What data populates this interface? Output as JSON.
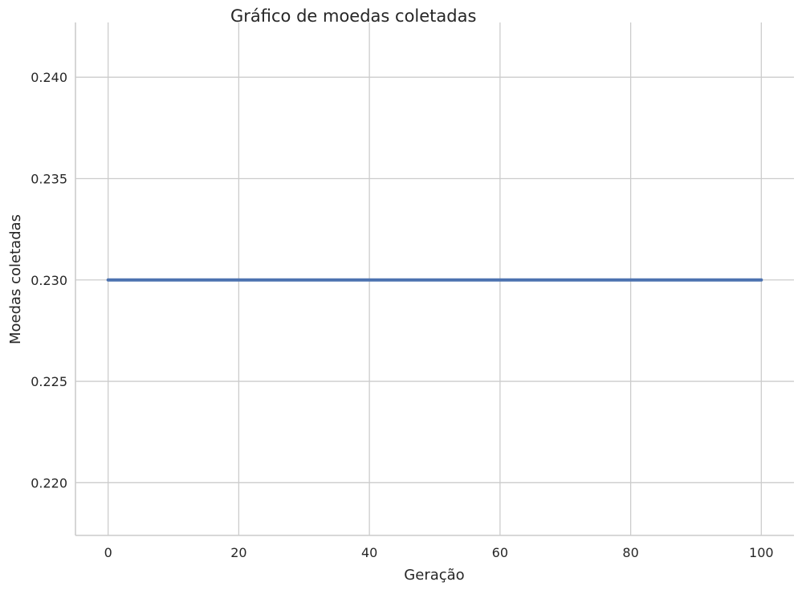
{
  "chart_data": {
    "type": "line",
    "title": "Gráfico de moedas coletadas",
    "xlabel": "Geração",
    "ylabel": "Moedas coletadas",
    "xlim": [
      -5,
      105
    ],
    "ylim": [
      0.2174,
      0.2427
    ],
    "xticks": [
      0,
      20,
      40,
      60,
      80,
      100
    ],
    "yticks": [
      0.22,
      0.225,
      0.23,
      0.235,
      0.24
    ],
    "xtick_labels": [
      "0",
      "20",
      "40",
      "60",
      "80",
      "100"
    ],
    "ytick_labels": [
      "0.220",
      "0.225",
      "0.230",
      "0.235",
      "0.240"
    ],
    "grid": true,
    "x": [
      0,
      100
    ],
    "series": [
      {
        "values": [
          0.23,
          0.23
        ],
        "color": "#4c72b0"
      }
    ]
  }
}
